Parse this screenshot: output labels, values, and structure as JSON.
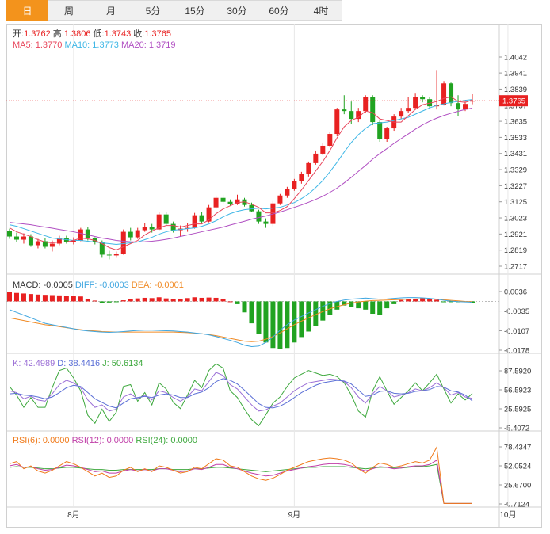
{
  "tabs": [
    "日",
    "周",
    "月",
    "5分",
    "15分",
    "30分",
    "60分",
    "4时"
  ],
  "active_tab": 0,
  "colors": {
    "up": "#e82121",
    "down": "#21a321",
    "ma5": "#e8455b",
    "ma10": "#3fb7e6",
    "ma20": "#b04ec2",
    "k": "#9b6fd6",
    "d": "#5b6fd6",
    "j": "#3da83d",
    "rsi6": "#f07a1a",
    "rsi12": "#c03fa8",
    "rsi24": "#3da83d",
    "diff": "#3fa6e0",
    "dea": "#f08a24",
    "price_tag": "#e82121"
  },
  "legends": {
    "ohlc": [
      {
        "label": "开:",
        "value": "1.3762"
      },
      {
        "label": "高:",
        "value": "1.3806"
      },
      {
        "label": "低:",
        "value": "1.3743"
      },
      {
        "label": "收:",
        "value": "1.3765"
      }
    ],
    "ma": [
      {
        "label": "MA5: 1.3770",
        "color": "ma5"
      },
      {
        "label": "MA10: 1.3773",
        "color": "ma10"
      },
      {
        "label": "MA20: 1.3719",
        "color": "ma20"
      }
    ],
    "macd": [
      {
        "label": "MACD: -0.0005",
        "color": "#333333"
      },
      {
        "label": "DIFF: -0.0003",
        "color": "diff"
      },
      {
        "label": "DEA: -0.0001",
        "color": "dea"
      }
    ],
    "kdj": [
      {
        "label": "K: 42.4989",
        "color": "k"
      },
      {
        "label": "D: 38.4416",
        "color": "d"
      },
      {
        "label": "J: 50.6134",
        "color": "j"
      }
    ],
    "rsi": [
      {
        "label": "RSI(6): 0.0000",
        "color": "rsi6"
      },
      {
        "label": "RSI(12): 0.0000",
        "color": "rsi12"
      },
      {
        "label": "RSI(24): 0.0000",
        "color": "rsi24"
      }
    ]
  },
  "current_price": "1.3765",
  "chart_data": {
    "type": "candlestick",
    "x_labels": [
      {
        "label": "8月",
        "index": 9
      },
      {
        "label": "9月",
        "index": 40
      },
      {
        "label": "10月",
        "index": 70
      }
    ],
    "price_axis": {
      "ticks": [
        "1.4042",
        "1.3941",
        "1.3839",
        "1.3737",
        "1.3635",
        "1.3533",
        "1.3431",
        "1.3329",
        "1.3227",
        "1.3125",
        "1.3023",
        "1.2921",
        "1.2819",
        "1.2717"
      ],
      "range": [
        1.2717,
        1.4042
      ]
    },
    "macd_axis": {
      "ticks": [
        "0.0036",
        "-0.0035",
        "-0.0107",
        "-0.0178"
      ],
      "range": [
        -0.0178,
        0.0036
      ]
    },
    "kdj_axis": {
      "ticks": [
        "87.5920",
        "56.5923",
        "25.5925",
        "-5.4072"
      ],
      "range": [
        -5.4072,
        87.592
      ]
    },
    "rsi_axis": {
      "ticks": [
        "78.4347",
        "52.0524",
        "25.6700",
        "-0.7124"
      ],
      "range": [
        -0.7124,
        78.4347
      ]
    },
    "candles": [
      [
        1.294,
        1.2955,
        1.289,
        1.2905
      ],
      [
        1.2905,
        1.293,
        1.287,
        1.2885
      ],
      [
        1.2885,
        1.2925,
        1.286,
        1.2905
      ],
      [
        1.2905,
        1.292,
        1.284,
        1.285
      ],
      [
        1.285,
        1.289,
        1.283,
        1.2875
      ],
      [
        1.2875,
        1.2895,
        1.283,
        1.284
      ],
      [
        1.284,
        1.288,
        1.281,
        1.286
      ],
      [
        1.286,
        1.291,
        1.285,
        1.2895
      ],
      [
        1.2895,
        1.291,
        1.286,
        1.287
      ],
      [
        1.287,
        1.29,
        1.2855,
        1.288
      ],
      [
        1.288,
        1.296,
        1.2875,
        1.295
      ],
      [
        1.295,
        1.2965,
        1.288,
        1.2895
      ],
      [
        1.2895,
        1.29,
        1.2855,
        1.287
      ],
      [
        1.287,
        1.288,
        1.277,
        1.279
      ],
      [
        1.279,
        1.2815,
        1.276,
        1.2785
      ],
      [
        1.2785,
        1.281,
        1.277,
        1.2795
      ],
      [
        1.2795,
        1.295,
        1.279,
        1.2935
      ],
      [
        1.2935,
        1.296,
        1.288,
        1.29
      ],
      [
        1.29,
        1.296,
        1.289,
        1.2945
      ],
      [
        1.2945,
        1.299,
        1.2935,
        1.2965
      ],
      [
        1.2965,
        1.2985,
        1.293,
        1.295
      ],
      [
        1.295,
        1.306,
        1.2945,
        1.3045
      ],
      [
        1.3045,
        1.306,
        1.2975,
        1.2985
      ],
      [
        1.2985,
        1.3,
        1.293,
        1.2945
      ],
      [
        1.2945,
        1.2975,
        1.2905,
        1.2955
      ],
      [
        1.2955,
        1.299,
        1.2935,
        1.296
      ],
      [
        1.296,
        1.3055,
        1.2955,
        1.304
      ],
      [
        1.304,
        1.306,
        1.2985,
        1.3
      ],
      [
        1.3,
        1.3105,
        1.2995,
        1.309
      ],
      [
        1.309,
        1.3165,
        1.308,
        1.315
      ],
      [
        1.315,
        1.317,
        1.311,
        1.3125
      ],
      [
        1.3125,
        1.314,
        1.31,
        1.311
      ],
      [
        1.311,
        1.317,
        1.3105,
        1.314
      ],
      [
        1.314,
        1.315,
        1.3095,
        1.3105
      ],
      [
        1.3105,
        1.312,
        1.306,
        1.3065
      ],
      [
        1.3065,
        1.3075,
        1.2985,
        1.3
      ],
      [
        1.3,
        1.302,
        1.296,
        1.2985
      ],
      [
        1.2985,
        1.313,
        1.297,
        1.3115
      ],
      [
        1.3115,
        1.3175,
        1.3105,
        1.3165
      ],
      [
        1.3165,
        1.322,
        1.315,
        1.3205
      ],
      [
        1.3205,
        1.327,
        1.3195,
        1.3255
      ],
      [
        1.3255,
        1.3315,
        1.324,
        1.33
      ],
      [
        1.33,
        1.338,
        1.3285,
        1.337
      ],
      [
        1.337,
        1.345,
        1.336,
        1.343
      ],
      [
        1.343,
        1.3495,
        1.342,
        1.348
      ],
      [
        1.348,
        1.357,
        1.347,
        1.3555
      ],
      [
        1.3555,
        1.372,
        1.354,
        1.371
      ],
      [
        1.371,
        1.38,
        1.368,
        1.37
      ],
      [
        1.37,
        1.376,
        1.362,
        1.365
      ],
      [
        1.365,
        1.372,
        1.363,
        1.37
      ],
      [
        1.37,
        1.38,
        1.369,
        1.379
      ],
      [
        1.379,
        1.38,
        1.361,
        1.363
      ],
      [
        1.363,
        1.364,
        1.3505,
        1.352
      ],
      [
        1.352,
        1.36,
        1.3505,
        1.359
      ],
      [
        1.359,
        1.368,
        1.3575,
        1.3665
      ],
      [
        1.3665,
        1.372,
        1.365,
        1.37
      ],
      [
        1.37,
        1.379,
        1.369,
        1.372
      ],
      [
        1.372,
        1.381,
        1.3715,
        1.379
      ],
      [
        1.379,
        1.38,
        1.3755,
        1.3775
      ],
      [
        1.3775,
        1.379,
        1.372,
        1.373
      ],
      [
        1.373,
        1.396,
        1.371,
        1.374
      ],
      [
        1.374,
        1.389,
        1.3735,
        1.3875
      ],
      [
        1.3875,
        1.388,
        1.373,
        1.375
      ],
      [
        1.375,
        1.38,
        1.367,
        1.371
      ],
      [
        1.371,
        1.376,
        1.37,
        1.3745
      ],
      [
        1.3762,
        1.3806,
        1.3743,
        1.3765
      ]
    ],
    "ma5": [
      1.296,
      1.2935,
      1.292,
      1.2905,
      1.2885,
      1.287,
      1.2865,
      1.287,
      1.287,
      1.288,
      1.2895,
      1.289,
      1.288,
      1.286,
      1.2835,
      1.282,
      1.284,
      1.286,
      1.288,
      1.2915,
      1.294,
      1.296,
      1.2975,
      1.2975,
      1.2965,
      1.2975,
      1.2985,
      1.2985,
      1.301,
      1.305,
      1.308,
      1.31,
      1.312,
      1.3125,
      1.311,
      1.309,
      1.3055,
      1.3055,
      1.307,
      1.3095,
      1.3145,
      1.32,
      1.326,
      1.332,
      1.338,
      1.345,
      1.353,
      1.36,
      1.364,
      1.366,
      1.37,
      1.369,
      1.365,
      1.364,
      1.363,
      1.363,
      1.367,
      1.371,
      1.374,
      1.375,
      1.376,
      1.378,
      1.379,
      1.376,
      1.3755,
      1.377
    ],
    "ma10": [
      1.298,
      1.297,
      1.2955,
      1.294,
      1.2925,
      1.291,
      1.2895,
      1.289,
      1.2885,
      1.288,
      1.288,
      1.2875,
      1.287,
      1.2865,
      1.286,
      1.2855,
      1.286,
      1.2865,
      1.287,
      1.2885,
      1.29,
      1.292,
      1.2935,
      1.2945,
      1.295,
      1.2955,
      1.296,
      1.297,
      1.2985,
      1.3005,
      1.303,
      1.305,
      1.3065,
      1.3075,
      1.308,
      1.3085,
      1.308,
      1.3085,
      1.309,
      1.3105,
      1.312,
      1.3145,
      1.3175,
      1.3215,
      1.326,
      1.3315,
      1.3375,
      1.344,
      1.35,
      1.355,
      1.359,
      1.362,
      1.3625,
      1.363,
      1.364,
      1.365,
      1.366,
      1.368,
      1.37,
      1.372,
      1.3735,
      1.3745,
      1.3755,
      1.376,
      1.3768,
      1.3773
    ],
    "ma20": [
      1.2995,
      1.299,
      1.2985,
      1.298,
      1.2972,
      1.2965,
      1.2958,
      1.295,
      1.2942,
      1.2935,
      1.2925,
      1.2915,
      1.2905,
      1.2895,
      1.2888,
      1.288,
      1.2875,
      1.2872,
      1.287,
      1.2872,
      1.2875,
      1.288,
      1.2887,
      1.2895,
      1.2905,
      1.2915,
      1.2925,
      1.2935,
      1.2945,
      1.2955,
      1.2965,
      1.2978,
      1.299,
      1.3002,
      1.3015,
      1.3025,
      1.3035,
      1.3048,
      1.306,
      1.3075,
      1.309,
      1.3105,
      1.3122,
      1.314,
      1.316,
      1.3185,
      1.3212,
      1.3245,
      1.328,
      1.3318,
      1.3355,
      1.3395,
      1.343,
      1.3462,
      1.3495,
      1.3525,
      1.3555,
      1.3585,
      1.3612,
      1.3635,
      1.3655,
      1.3672,
      1.3686,
      1.3698,
      1.371,
      1.3719
    ],
    "macd_hist": [
      0.0034,
      0.0031,
      0.0029,
      0.0027,
      0.0025,
      0.0024,
      0.0023,
      0.0022,
      0.0021,
      0.002,
      0.0018,
      0.001,
      0.0003,
      -0.0005,
      -0.0004,
      -0.0002,
      0.0004,
      0.0008,
      0.0011,
      0.0013,
      0.0012,
      0.0015,
      0.0011,
      0.0008,
      0.001,
      0.0012,
      0.0015,
      0.0013,
      0.0014,
      0.0013,
      0.001,
      0.0,
      -0.001,
      -0.004,
      -0.008,
      -0.012,
      -0.015,
      -0.017,
      -0.0175,
      -0.017,
      -0.015,
      -0.013,
      -0.011,
      -0.009,
      -0.007,
      -0.005,
      -0.003,
      -0.0015,
      -0.002,
      -0.0025,
      -0.003,
      -0.0045,
      -0.005,
      -0.0025,
      -0.001,
      0.0005,
      0.0008,
      0.001,
      0.0012,
      0.001,
      0.0006,
      -0.0003,
      -0.0002,
      -0.0001,
      -0.0003,
      -0.0005
    ],
    "diff": [
      -0.003,
      -0.004,
      -0.005,
      -0.006,
      -0.007,
      -0.008,
      -0.0085,
      -0.009,
      -0.0095,
      -0.01,
      -0.0105,
      -0.0108,
      -0.011,
      -0.0112,
      -0.0113,
      -0.0112,
      -0.011,
      -0.0108,
      -0.0106,
      -0.0105,
      -0.0105,
      -0.0106,
      -0.0107,
      -0.0108,
      -0.011,
      -0.0112,
      -0.0115,
      -0.0118,
      -0.0122,
      -0.0128,
      -0.0135,
      -0.0142,
      -0.015,
      -0.016,
      -0.0165,
      -0.0163,
      -0.015,
      -0.013,
      -0.0105,
      -0.0085,
      -0.0068,
      -0.0055,
      -0.0042,
      -0.003,
      -0.0018,
      -0.0008,
      0.0,
      0.0005,
      0.0008,
      0.001,
      0.0012,
      0.001,
      0.0008,
      0.0009,
      0.0011,
      0.0013,
      0.0014,
      0.0014,
      0.0013,
      0.0011,
      0.0008,
      0.0004,
      0.0001,
      -0.0001,
      -0.0002,
      -0.0003
    ],
    "dea": [
      -0.006,
      -0.0065,
      -0.007,
      -0.0075,
      -0.008,
      -0.0085,
      -0.0088,
      -0.0092,
      -0.0096,
      -0.01,
      -0.0103,
      -0.0106,
      -0.0108,
      -0.011,
      -0.0111,
      -0.0112,
      -0.0112,
      -0.0112,
      -0.0112,
      -0.0112,
      -0.0112,
      -0.0112,
      -0.0112,
      -0.0112,
      -0.0113,
      -0.0114,
      -0.0116,
      -0.0118,
      -0.0121,
      -0.0125,
      -0.013,
      -0.0135,
      -0.014,
      -0.0145,
      -0.0147,
      -0.0145,
      -0.0138,
      -0.0128,
      -0.0115,
      -0.01,
      -0.0085,
      -0.0072,
      -0.006,
      -0.0048,
      -0.0037,
      -0.0027,
      -0.0019,
      -0.0012,
      -0.0006,
      -0.0002,
      0.0001,
      0.0003,
      0.0004,
      0.0005,
      0.0006,
      0.0007,
      0.0008,
      0.0009,
      0.0009,
      0.0009,
      0.0008,
      0.0006,
      0.0004,
      0.0002,
      0.0,
      -0.0001
    ],
    "k": [
      55,
      52,
      42,
      46,
      40,
      38,
      50,
      65,
      72,
      68,
      60,
      40,
      28,
      32,
      22,
      25,
      45,
      50,
      42,
      48,
      40,
      55,
      52,
      44,
      38,
      45,
      58,
      55,
      70,
      85,
      80,
      65,
      58,
      45,
      32,
      22,
      24,
      30,
      35,
      45,
      55,
      62,
      68,
      70,
      72,
      74,
      73,
      70,
      60,
      45,
      35,
      50,
      62,
      55,
      45,
      48,
      52,
      58,
      55,
      60,
      68,
      60,
      48,
      52,
      45,
      42.5
    ],
    "d": [
      50,
      51,
      48,
      47,
      45,
      42,
      45,
      52,
      60,
      64,
      62,
      52,
      42,
      36,
      30,
      27,
      35,
      42,
      44,
      46,
      44,
      48,
      50,
      48,
      44,
      44,
      50,
      53,
      60,
      70,
      75,
      72,
      66,
      56,
      45,
      34,
      28,
      27,
      30,
      36,
      44,
      52,
      58,
      64,
      68,
      70,
      72,
      71,
      66,
      56,
      46,
      48,
      54,
      55,
      51,
      50,
      51,
      54,
      55,
      57,
      62,
      61,
      55,
      53,
      48,
      38.4
    ],
    "j": [
      62,
      48,
      28,
      44,
      28,
      28,
      60,
      88,
      92,
      76,
      55,
      15,
      2,
      25,
      5,
      20,
      62,
      65,
      38,
      52,
      32,
      68,
      58,
      36,
      26,
      48,
      72,
      60,
      88,
      99,
      92,
      55,
      44,
      25,
      8,
      -2,
      16,
      35,
      45,
      62,
      76,
      82,
      88,
      84,
      80,
      82,
      78,
      68,
      48,
      22,
      12,
      55,
      78,
      55,
      33,
      44,
      55,
      68,
      55,
      68,
      82,
      58,
      35,
      50,
      40,
      50.6
    ],
    "rsi6": [
      55,
      58,
      48,
      52,
      45,
      42,
      46,
      52,
      58,
      55,
      50,
      44,
      38,
      42,
      36,
      38,
      46,
      50,
      44,
      48,
      44,
      52,
      50,
      46,
      42,
      44,
      50,
      48,
      55,
      62,
      60,
      52,
      50,
      44,
      38,
      34,
      32,
      35,
      40,
      46,
      50,
      54,
      58,
      60,
      62,
      63,
      62,
      60,
      56,
      48,
      42,
      50,
      56,
      54,
      50,
      52,
      55,
      58,
      56,
      60,
      78,
      0,
      0,
      0,
      0,
      0
    ],
    "rsi12": [
      52,
      54,
      50,
      51,
      48,
      46,
      47,
      50,
      53,
      52,
      50,
      47,
      44,
      45,
      42,
      42,
      45,
      47,
      45,
      47,
      45,
      48,
      48,
      46,
      44,
      45,
      48,
      47,
      50,
      54,
      54,
      50,
      48,
      45,
      42,
      40,
      38,
      39,
      42,
      45,
      47,
      49,
      51,
      52,
      54,
      55,
      55,
      54,
      52,
      48,
      45,
      48,
      51,
      50,
      48,
      49,
      51,
      52,
      52,
      54,
      60,
      0,
      0,
      0,
      0,
      0
    ],
    "rsi24": [
      50,
      51,
      50,
      50,
      49,
      48,
      48,
      49,
      50,
      50,
      49,
      48,
      47,
      47,
      46,
      46,
      47,
      47,
      47,
      47,
      47,
      48,
      48,
      47,
      47,
      47,
      48,
      48,
      49,
      50,
      50,
      49,
      48,
      47,
      46,
      45,
      44,
      45,
      46,
      47,
      48,
      49,
      50,
      50,
      51,
      51,
      51,
      51,
      50,
      49,
      48,
      49,
      50,
      50,
      49,
      49,
      50,
      51,
      51,
      52,
      54,
      0,
      0,
      0,
      0,
      0
    ]
  }
}
